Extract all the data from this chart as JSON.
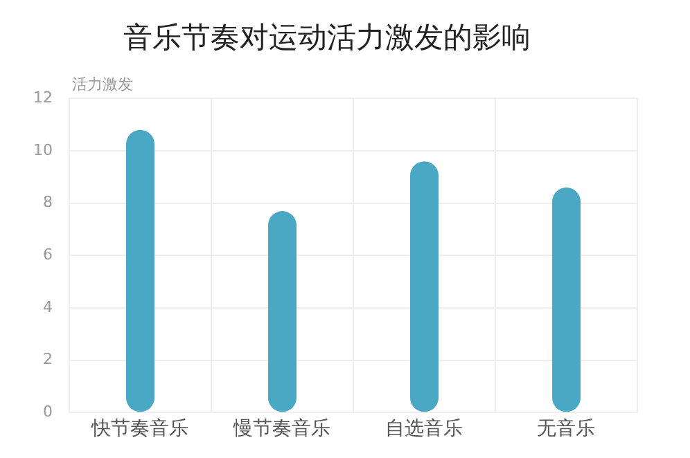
{
  "chart_data": {
    "type": "bar",
    "title": "音乐节奏对运动活力激发的影响",
    "ylabel": "活力激发",
    "categories": [
      "快节奏音乐",
      "慢节奏音乐",
      "自选音乐",
      "无音乐"
    ],
    "values": [
      10.8,
      7.7,
      9.6,
      8.6
    ],
    "color": "#4aa8c4",
    "ylim": [
      0,
      12
    ],
    "yticks": [
      0,
      2,
      4,
      6,
      8,
      10,
      12
    ],
    "grid": true,
    "legend": false
  }
}
